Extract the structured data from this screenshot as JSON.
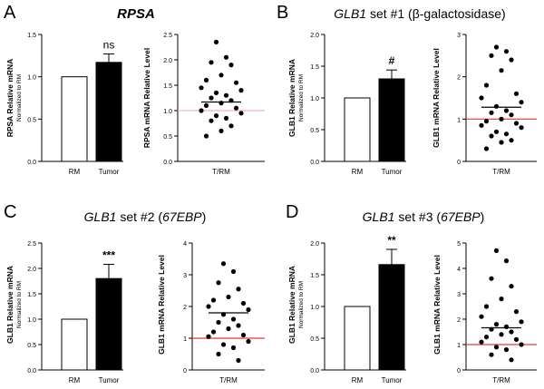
{
  "panels": [
    {
      "letter": "A",
      "title": {
        "italic": "RPSA",
        "rest": ""
      },
      "bar_ylabel": "RPSA Relative mRNA",
      "bar_ylabel_sub": "Normalized to RM",
      "scatter_ylabel": "RPSA mRNA Relative Level"
    },
    {
      "letter": "B",
      "title": {
        "italic": "GLB1",
        "rest": " set #1 (β-galactosidase)"
      },
      "bar_ylabel": "GLB1 Relative mRNA",
      "bar_ylabel_sub": "Normalized to RM",
      "scatter_ylabel": "GLB1 mRNA Relative Level"
    },
    {
      "letter": "C",
      "title": {
        "italic": "GLB1",
        "rest": " set #2 (",
        "italic2": "67EBP",
        "rest2": ")"
      },
      "bar_ylabel": "GLB1 Relative mRNA",
      "bar_ylabel_sub": "Normalized to RM",
      "scatter_ylabel": "GLB1 mRNA Relative Level"
    },
    {
      "letter": "D",
      "title": {
        "italic": "GLB1",
        "rest": " set #3 (",
        "italic2": "67EBP",
        "rest2": ")"
      },
      "bar_ylabel": "GLB1 Relative mRNA",
      "bar_ylabel_sub": "Normalized to RM",
      "scatter_ylabel": "GLB1 mRNA Relative Level"
    }
  ],
  "chart_data": [
    {
      "panel": "A",
      "type": "bar",
      "categories": [
        "RM",
        "Tumor"
      ],
      "values": [
        1.0,
        1.17
      ],
      "error": [
        0,
        0.1
      ],
      "significance": "ns",
      "ylim": [
        0,
        1.5
      ],
      "yticks": [
        "0.0",
        "0.5",
        "1.0",
        "1.5"
      ],
      "fill": [
        "#ffffff",
        "#000000"
      ]
    },
    {
      "panel": "A",
      "type": "scatter",
      "category": "T/RM",
      "ylim": [
        0,
        2.5
      ],
      "yticks": [
        "0.0",
        "0.5",
        "1.0",
        "1.5",
        "2.0",
        "2.5"
      ],
      "reference_line": 1.0,
      "reference_color": "#f4b6b6",
      "mean": 1.17,
      "values": [
        2.35,
        2.05,
        1.95,
        1.9,
        1.7,
        1.6,
        1.55,
        1.45,
        1.4,
        1.35,
        1.3,
        1.25,
        1.2,
        1.15,
        1.1,
        1.05,
        1.0,
        0.95,
        0.9,
        0.85,
        0.8,
        0.7,
        0.6,
        0.5
      ]
    },
    {
      "panel": "B",
      "type": "bar",
      "categories": [
        "RM",
        "Tumor"
      ],
      "values": [
        1.0,
        1.3
      ],
      "error": [
        0,
        0.14
      ],
      "significance": "#",
      "ylim": [
        0,
        2.0
      ],
      "yticks": [
        "0.0",
        "0.5",
        "1.0",
        "1.5",
        "2.0"
      ],
      "fill": [
        "#ffffff",
        "#000000"
      ]
    },
    {
      "panel": "B",
      "type": "scatter",
      "category": "T/RM",
      "ylim": [
        0,
        3
      ],
      "yticks": [
        "0",
        "1",
        "2",
        "3"
      ],
      "reference_line": 1.0,
      "reference_color": "#e8392c",
      "mean": 1.28,
      "values": [
        2.7,
        2.6,
        2.5,
        2.4,
        2.15,
        1.8,
        1.6,
        1.5,
        1.4,
        1.3,
        1.2,
        1.15,
        1.1,
        1.0,
        0.95,
        0.9,
        0.85,
        0.8,
        0.7,
        0.65,
        0.6,
        0.5,
        0.45,
        0.3
      ]
    },
    {
      "panel": "C",
      "type": "bar",
      "categories": [
        "RM",
        "Tumor"
      ],
      "values": [
        1.0,
        1.8
      ],
      "error": [
        0,
        0.28
      ],
      "significance": "***",
      "ylim": [
        0,
        2.5
      ],
      "yticks": [
        "0.0",
        "0.5",
        "1.0",
        "1.5",
        "2.0",
        "2.5"
      ],
      "fill": [
        "#ffffff",
        "#000000"
      ]
    },
    {
      "panel": "C",
      "type": "scatter",
      "category": "T/RM",
      "ylim": [
        0,
        4
      ],
      "yticks": [
        "0",
        "1",
        "2",
        "3",
        "4"
      ],
      "reference_line": 1.0,
      "reference_color": "#e8392c",
      "mean": 1.8,
      "values": [
        3.35,
        3.1,
        2.75,
        2.55,
        2.3,
        2.2,
        2.1,
        2.0,
        1.9,
        1.75,
        1.6,
        1.5,
        1.4,
        1.3,
        1.2,
        1.1,
        1.05,
        0.9,
        0.8,
        0.7,
        0.5,
        0.3
      ]
    },
    {
      "panel": "D",
      "type": "bar",
      "categories": [
        "RM",
        "Tumor"
      ],
      "values": [
        1.0,
        1.66
      ],
      "error": [
        0,
        0.24
      ],
      "significance": "**",
      "ylim": [
        0,
        2.0
      ],
      "yticks": [
        "0.0",
        "0.5",
        "1.0",
        "1.5",
        "2.0"
      ],
      "fill": [
        "#ffffff",
        "#000000"
      ]
    },
    {
      "panel": "D",
      "type": "scatter",
      "category": "T/RM",
      "ylim": [
        0,
        5
      ],
      "yticks": [
        "0",
        "1",
        "2",
        "3",
        "4",
        "5"
      ],
      "reference_line": 1.0,
      "reference_color": "#e8392c",
      "mean": 1.66,
      "values": [
        4.7,
        4.3,
        3.6,
        3.3,
        2.8,
        2.5,
        2.3,
        2.1,
        1.9,
        1.8,
        1.7,
        1.6,
        1.5,
        1.4,
        1.3,
        1.2,
        1.1,
        1.0,
        0.9,
        0.8,
        0.6,
        0.4
      ]
    }
  ]
}
